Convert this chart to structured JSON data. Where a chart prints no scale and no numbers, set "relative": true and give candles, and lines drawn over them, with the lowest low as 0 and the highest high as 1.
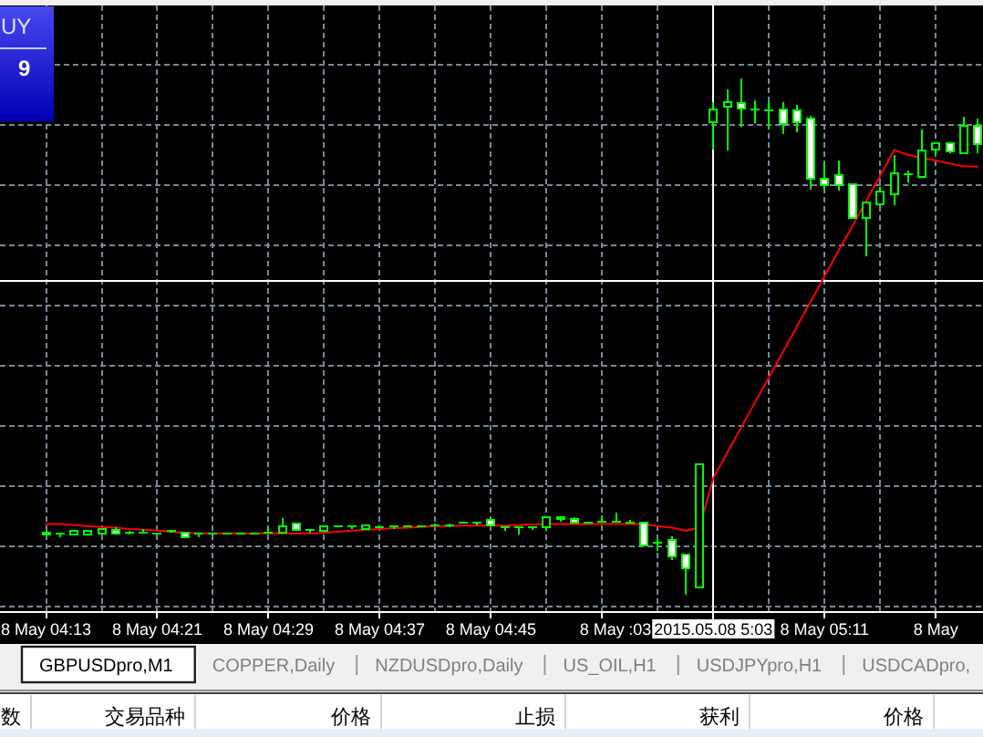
{
  "chart_data": {
    "type": "candlestick",
    "relative": true,
    "categories": [
      "8 May 04:13",
      null,
      null,
      null,
      null,
      null,
      null,
      null,
      "8 May 04:21",
      null,
      null,
      null,
      null,
      null,
      null,
      null,
      "8 May 04:29",
      null,
      null,
      null,
      null,
      null,
      null,
      null,
      "8 May 04:37",
      null,
      null,
      null,
      null,
      null,
      null,
      null,
      "8 May 04:45",
      null,
      null,
      null,
      null,
      null,
      null,
      null,
      "8 May",
      null,
      null,
      null,
      null,
      null,
      null,
      null,
      null,
      null,
      null,
      null,
      null,
      null,
      null,
      null,
      "8 May 05:11",
      null,
      null,
      null,
      null,
      null,
      null,
      null,
      "8 May",
      null,
      null,
      null
    ],
    "ohlc": [
      [
        0.116,
        0.123,
        0.114,
        0.121
      ],
      [
        0.119,
        0.12,
        0.112,
        0.119
      ],
      [
        0.117,
        0.125,
        0.116,
        0.124
      ],
      [
        0.117,
        0.124,
        0.117,
        0.124
      ],
      [
        0.118,
        0.127,
        0.118,
        0.127
      ],
      [
        0.126,
        0.131,
        0.119,
        0.119
      ],
      [
        0.12,
        0.124,
        0.117,
        0.12
      ],
      [
        0.12,
        0.127,
        0.119,
        0.12
      ],
      [
        0.119,
        0.12,
        0.118,
        0.119
      ],
      [
        0.123,
        0.124,
        0.12,
        0.123
      ],
      [
        0.121,
        0.122,
        0.111,
        0.112
      ],
      [
        0.119,
        0.119,
        0.112,
        0.119
      ],
      [
        0.118,
        0.119,
        0.117,
        0.118
      ],
      [
        0.118,
        0.119,
        0.117,
        0.118
      ],
      [
        0.118,
        0.119,
        0.117,
        0.118
      ],
      [
        0.118,
        0.119,
        0.117,
        0.118
      ],
      [
        0.12,
        0.13,
        0.119,
        0.12
      ],
      [
        0.121,
        0.148,
        0.121,
        0.133
      ],
      [
        0.137,
        0.137,
        0.124,
        0.125
      ],
      [
        0.126,
        0.127,
        0.12,
        0.126
      ],
      [
        0.124,
        0.133,
        0.124,
        0.133
      ],
      [
        0.133,
        0.134,
        0.132,
        0.133
      ],
      [
        0.133,
        0.134,
        0.127,
        0.133
      ],
      [
        0.127,
        0.134,
        0.127,
        0.134
      ],
      [
        0.131,
        0.134,
        0.129,
        0.131
      ],
      [
        0.133,
        0.134,
        0.127,
        0.133
      ],
      [
        0.133,
        0.134,
        0.132,
        0.133
      ],
      [
        0.133,
        0.134,
        0.132,
        0.133
      ],
      [
        0.134,
        0.137,
        0.133,
        0.134
      ],
      [
        0.134,
        0.138,
        0.131,
        0.134
      ],
      [
        0.139,
        0.142,
        0.138,
        0.139
      ],
      [
        0.14,
        0.141,
        0.135,
        0.14
      ],
      [
        0.145,
        0.151,
        0.135,
        0.135
      ],
      [
        0.13,
        0.131,
        0.123,
        0.13
      ],
      [
        0.13,
        0.131,
        0.116,
        0.13
      ],
      [
        0.13,
        0.131,
        0.125,
        0.13
      ],
      [
        0.13,
        0.151,
        0.124,
        0.151
      ],
      [
        0.147,
        0.151,
        0.141,
        0.151
      ],
      [
        0.147,
        0.151,
        0.139,
        0.139
      ],
      [
        0.14,
        0.141,
        0.139,
        0.14
      ],
      [
        0.141,
        0.154,
        0.14,
        0.141
      ],
      [
        0.141,
        0.159,
        0.14,
        0.141
      ],
      [
        0.14,
        0.145,
        0.139,
        0.14
      ],
      [
        0.14,
        0.141,
        0.096,
        0.096
      ],
      [
        0.1,
        0.107,
        0.084,
        0.1
      ],
      [
        0.106,
        0.113,
        0.068,
        0.075
      ],
      [
        0.078,
        0.078,
        0,
        0.051
      ],
      [
        0.015,
        0.253,
        0.015,
        0.253
      ],
      [
        0.916,
        0.954,
        0.863,
        0.94
      ],
      [
        0.946,
        0.979,
        0.86,
        0.954
      ],
      [
        0.953,
        1,
        0.907,
        0.942
      ],
      [
        0.94,
        0.958,
        0.913,
        0.94
      ],
      [
        0.939,
        0.955,
        0.901,
        0.939
      ],
      [
        0.94,
        0.954,
        0.893,
        0.911
      ],
      [
        0.939,
        0.948,
        0.895,
        0.916
      ],
      [
        0.922,
        0.928,
        0.785,
        0.805
      ],
      [
        0.806,
        0.838,
        0.785,
        0.793
      ],
      [
        0.813,
        0.841,
        0.782,
        0.794
      ],
      [
        0.795,
        0.795,
        0.73,
        0.73
      ],
      [
        0.73,
        0.76,
        0.655,
        0.76
      ],
      [
        0.757,
        0.79,
        0.753,
        0.781
      ],
      [
        0.775,
        0.852,
        0.754,
        0.816
      ],
      [
        0.814,
        0.822,
        0.799,
        0.814
      ],
      [
        0.81,
        0.901,
        0.81,
        0.861
      ],
      [
        0.863,
        0.875,
        0.854,
        0.875
      ],
      [
        0.875,
        0.875,
        0.855,
        0.858
      ],
      [
        0.855,
        0.926,
        0.855,
        0.908
      ],
      [
        0.908,
        0.922,
        0.855,
        0.873
      ]
    ],
    "color": "#00ff00",
    "series": [
      {
        "type": "line",
        "color": "#ff0000",
        "values": [
          0.137,
          0.137,
          0.135,
          0.133,
          0.131,
          0.13,
          0.127,
          0.126,
          0.124,
          0.122,
          0.12,
          0.119,
          0.119,
          0.119,
          0.119,
          0.119,
          0.119,
          0.119,
          0.119,
          0.119,
          0.12,
          0.122,
          0.124,
          0.126,
          0.127,
          0.129,
          0.13,
          0.131,
          0.133,
          0.133,
          0.134,
          0.134,
          0.134,
          0.134,
          0.135,
          0.136,
          0.137,
          0.137,
          0.137,
          0.137,
          0.137,
          0.137,
          0.137,
          0.137,
          0.133,
          0.13,
          0.124,
          0.13,
          0.226,
          0.275,
          0.324,
          0.373,
          0.421,
          0.47,
          0.519,
          0.568,
          0.617,
          0.666,
          0.714,
          0.763,
          0.812,
          0.861,
          0.852,
          0.846,
          0.841,
          0.835,
          0.83,
          0.829
        ]
      }
    ],
    "grid": true,
    "ref_lines": [
      {
        "axis": "y",
        "value": 0.608,
        "color": "#ffffff"
      }
    ],
    "annotations": [
      "UY",
      "9",
      "2015.05.08 5:03",
      ":03",
      "GBPUSDpro,M1",
      "COPPER,Daily",
      "NZDUSDpro,Daily",
      "US_OIL,H1",
      "USDJPYpro,H1",
      "USDCADpro,",
      "数",
      "交易品种",
      "价格",
      "止损",
      "获利",
      "价格"
    ]
  }
}
